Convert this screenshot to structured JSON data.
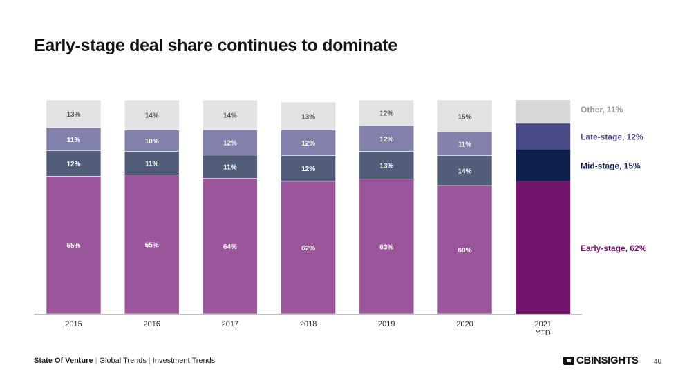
{
  "title": "Early-stage deal share continues to dominate",
  "footer": {
    "report": "State Of Venture",
    "section1": "Global Trends",
    "section2": "Investment Trends",
    "separator": "|",
    "brand": "CBINSIGHTS",
    "page": "40"
  },
  "chart_data": {
    "type": "bar",
    "stacked": true,
    "percent": true,
    "categories": [
      "2015",
      "2016",
      "2017",
      "2018",
      "2019",
      "2020",
      "2021\nYTD"
    ],
    "series": [
      {
        "name": "Early-stage",
        "values": [
          65,
          65,
          64,
          62,
          63,
          60,
          62
        ],
        "color": "#9b559b",
        "highlight_color": "#73146e",
        "label_color": "#ffffff"
      },
      {
        "name": "Mid-stage",
        "values": [
          12,
          11,
          11,
          12,
          13,
          14,
          15
        ],
        "color": "#525d7a",
        "highlight_color": "#0c1f4d",
        "label_color": "#ffffff"
      },
      {
        "name": "Late-stage",
        "values": [
          11,
          10,
          12,
          12,
          12,
          11,
          12
        ],
        "color": "#8181ac",
        "highlight_color": "#4a4a87",
        "label_color": "#ffffff"
      },
      {
        "name": "Other",
        "values": [
          13,
          14,
          14,
          13,
          12,
          15,
          11
        ],
        "color": "#e2e2e2",
        "highlight_color": "#d7d7d7",
        "label_color": "#555555"
      }
    ],
    "legend": [
      {
        "label": "Other, 11%",
        "color": "#999999"
      },
      {
        "label": "Late-stage, 12%",
        "color": "#4a4a87"
      },
      {
        "label": "Mid-stage, 15%",
        "color": "#0c1f4d"
      },
      {
        "label": "Early-stage, 62%",
        "color": "#73146e"
      }
    ],
    "legend_position": "right",
    "ylim": [
      0,
      100
    ],
    "grid": false,
    "show_y_axis": false,
    "highlight_last": true,
    "value_suffix": "%"
  }
}
